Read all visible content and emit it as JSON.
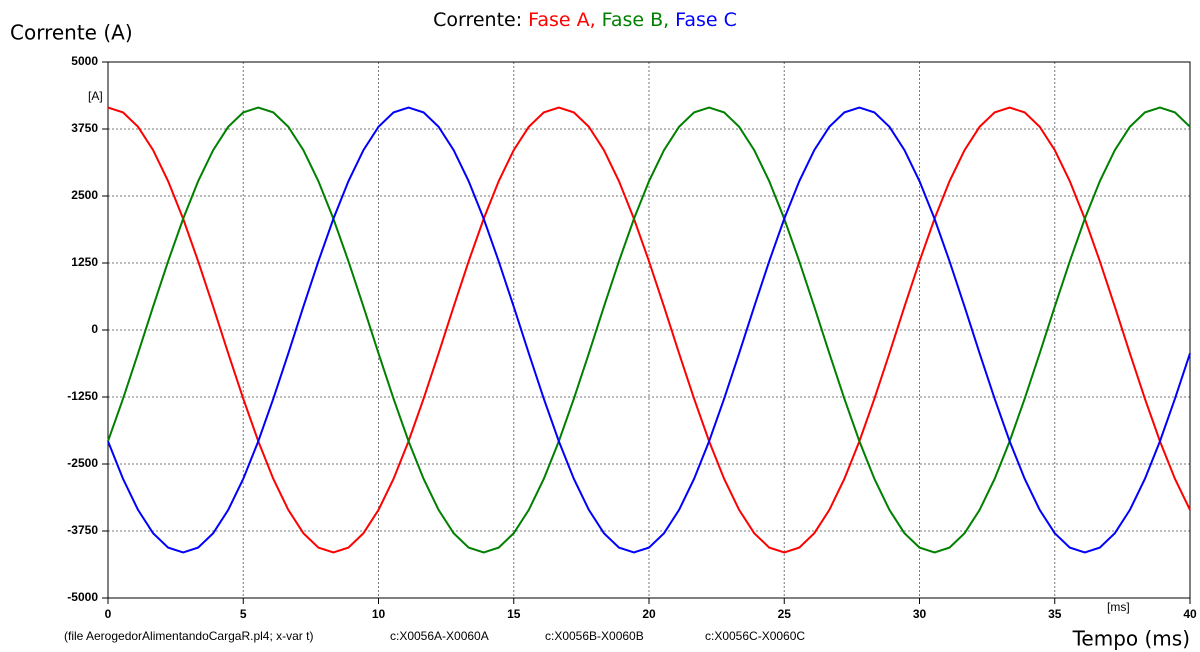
{
  "chart_data": {
    "type": "line",
    "title": [
      "Corrente:",
      "Fase A,",
      "Fase B,",
      "Fase C"
    ],
    "y_label": "Corrente (A)",
    "y_unit": "[A]",
    "x_unit": "[ms]",
    "x_label": "Tempo (ms)",
    "note": "(file AerogedorAlimentandoCargaR.pl4; x-var t)",
    "grid": true,
    "xlim": [
      0,
      40
    ],
    "xticks": [
      0,
      5,
      10,
      15,
      20,
      25,
      30,
      35,
      40
    ],
    "ylim": [
      -5000,
      5000
    ],
    "yticks": [
      5000,
      3750,
      2500,
      1250,
      0,
      -1250,
      -2500,
      -3750,
      -5000
    ],
    "x": [
      0,
      0.556,
      1.111,
      1.667,
      2.222,
      2.778,
      3.333,
      3.889,
      4.444,
      5,
      5.556,
      6.111,
      6.667,
      7.222,
      7.778,
      8.333,
      8.889,
      9.444,
      10,
      10.556,
      11.111,
      11.667,
      12.222,
      12.778,
      13.333,
      13.889,
      14.444,
      15,
      15.556,
      16.111,
      16.667,
      17.222,
      17.778,
      18.333,
      18.889,
      19.444,
      20,
      20.556,
      21.111,
      21.667,
      22.222,
      22.778,
      23.333,
      23.889,
      24.444,
      25,
      25.556,
      26.111,
      26.667,
      27.222,
      27.778,
      28.333,
      28.889,
      29.444,
      30,
      30.556,
      31.111,
      31.667,
      32.222,
      32.778,
      33.333,
      33.889,
      34.444,
      35,
      35.556,
      36.111,
      36.667,
      37.222,
      37.778,
      38.333,
      38.889,
      39.444,
      40
    ],
    "series": [
      {
        "name": "c:X0056A-X0060A",
        "color": "#ff0000",
        "values": [
          4150,
          4059,
          3791,
          3357,
          2777,
          2075,
          1282,
          434,
          -434,
          -1282,
          -2075,
          -2777,
          -3357,
          -3791,
          -4059,
          -4150,
          -4059,
          -3791,
          -3357,
          -2777,
          -2075,
          -1282,
          -434,
          434,
          1282,
          2075,
          2777,
          3357,
          3791,
          4059,
          4150,
          4059,
          3791,
          3357,
          2777,
          2075,
          1282,
          434,
          -434,
          -1282,
          -2075,
          -2777,
          -3357,
          -3791,
          -4059,
          -4150,
          -4059,
          -3791,
          -3357,
          -2777,
          -2075,
          -1282,
          -434,
          434,
          1282,
          2075,
          2777,
          3357,
          3791,
          4059,
          4150,
          4059,
          3791,
          3357,
          2777,
          2075,
          1282,
          434,
          -434,
          -1282,
          -2075,
          -2777,
          -3357
        ]
      },
      {
        "name": "c:X0056B-X0060B",
        "color": "#008000",
        "values": [
          -2075,
          -1282,
          -434,
          434,
          1282,
          2075,
          2777,
          3357,
          3791,
          4059,
          4150,
          4059,
          3791,
          3357,
          2777,
          2075,
          1282,
          434,
          -434,
          -1282,
          -2075,
          -2777,
          -3357,
          -3791,
          -4059,
          -4150,
          -4059,
          -3791,
          -3357,
          -2777,
          -2075,
          -1282,
          -434,
          434,
          1282,
          2075,
          2777,
          3357,
          3791,
          4059,
          4150,
          4059,
          3791,
          3357,
          2777,
          2075,
          1282,
          434,
          -434,
          -1282,
          -2075,
          -2777,
          -3357,
          -3791,
          -4059,
          -4150,
          -4059,
          -3791,
          -3357,
          -2777,
          -2075,
          -1282,
          -434,
          434,
          1282,
          2075,
          2777,
          3357,
          3791,
          4059,
          4150,
          4059,
          3791
        ]
      },
      {
        "name": "c:X0056C-X0060C",
        "color": "#0000ff",
        "values": [
          -2075,
          -2777,
          -3357,
          -3791,
          -4059,
          -4150,
          -4059,
          -3791,
          -3357,
          -2777,
          -2075,
          -1282,
          -434,
          434,
          1282,
          2075,
          2777,
          3357,
          3791,
          4059,
          4150,
          4059,
          3791,
          3357,
          2777,
          2075,
          1282,
          434,
          -434,
          -1282,
          -2075,
          -2777,
          -3357,
          -3791,
          -4059,
          -4150,
          -4059,
          -3791,
          -3357,
          -2777,
          -2075,
          -1282,
          -434,
          434,
          1282,
          2075,
          2777,
          3357,
          3791,
          4059,
          4150,
          4059,
          3791,
          3357,
          2777,
          2075,
          1282,
          434,
          -434,
          -1282,
          -2075,
          -2777,
          -3357,
          -3791,
          -4059,
          -4150,
          -4059,
          -3791,
          -3357,
          -2777,
          -2075,
          -1282,
          -434
        ]
      }
    ]
  }
}
